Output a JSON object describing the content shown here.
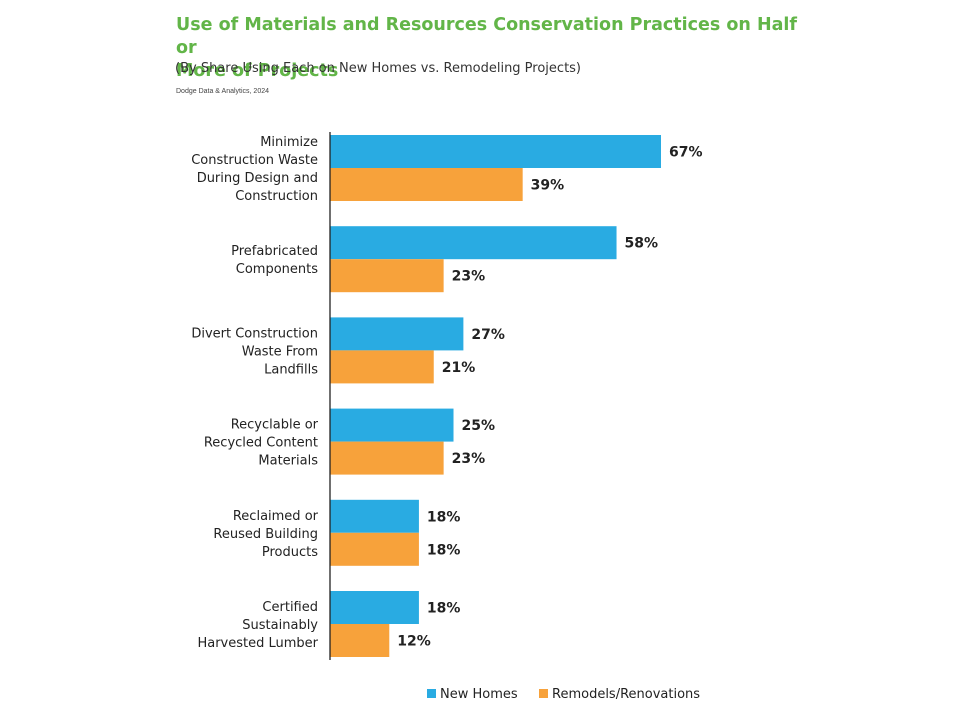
{
  "header": {
    "title_line1": "Use of Materials and Resources Conservation Practices on Half or",
    "title_line2": "More of Projects",
    "subtitle": "(By Share Using Each on New Homes vs. Remodeling Projects)",
    "source": "Dodge Data & Analytics, 2024"
  },
  "colors": {
    "new_homes": "#29abe2",
    "remodels": "#f7a23b",
    "title": "#62b548"
  },
  "chart_data": {
    "type": "bar",
    "orientation": "horizontal",
    "title": "Use of Materials and Resources Conservation Practices on Half or More of Projects",
    "subtitle": "(By Share Using Each on New Homes vs. Remodeling Projects)",
    "categories": [
      [
        "Minimize",
        "Construction Waste",
        "During Design and",
        "Construction"
      ],
      [
        "Prefabricated",
        "Components"
      ],
      [
        "Divert Construction",
        "Waste From",
        "Landfills"
      ],
      [
        "Recyclable or",
        "Recycled Content",
        "Materials"
      ],
      [
        "Reclaimed or",
        "Reused Building",
        "Products"
      ],
      [
        "Certified",
        "Sustainably",
        "Harvested Lumber"
      ]
    ],
    "series": [
      {
        "name": "New Homes",
        "values": [
          67,
          58,
          27,
          25,
          18,
          18
        ]
      },
      {
        "name": "Remodels/Renovations",
        "values": [
          39,
          23,
          21,
          23,
          18,
          12
        ]
      }
    ],
    "value_suffix": "%",
    "legend_position": "bottom",
    "grid": false
  }
}
